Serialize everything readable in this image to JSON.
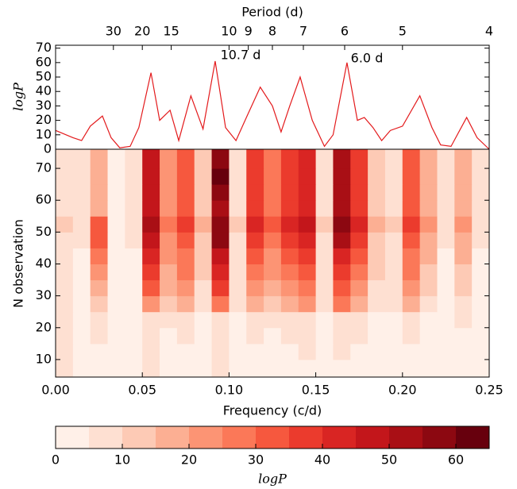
{
  "chart_data": [
    {
      "type": "line",
      "title": "Period (d)",
      "ylabel": "logP",
      "color": "#e31a1c",
      "x": [
        0,
        0.01,
        0.015,
        0.02,
        0.027,
        0.032,
        0.037,
        0.043,
        0.048,
        0.055,
        0.06,
        0.066,
        0.071,
        0.078,
        0.085,
        0.092,
        0.098,
        0.104,
        0.11,
        0.118,
        0.125,
        0.13,
        0.135,
        0.141,
        0.148,
        0.155,
        0.16,
        0.168,
        0.174,
        0.178,
        0.183,
        0.188,
        0.193,
        0.2,
        0.21,
        0.217,
        0.222,
        0.228,
        0.237,
        0.243,
        0.25
      ],
      "values": [
        13,
        8,
        6,
        16,
        23,
        8,
        1,
        2,
        15,
        53,
        20,
        27,
        6,
        37,
        14,
        61,
        15,
        6,
        22,
        43,
        30,
        12,
        30,
        50,
        20,
        2,
        10,
        60,
        20,
        22,
        15,
        6,
        13,
        16,
        37,
        15,
        3,
        2,
        22,
        8,
        0
      ],
      "xlim": [
        0,
        0.25
      ],
      "ylim": [
        0,
        72
      ],
      "yticks": [
        0,
        10,
        20,
        30,
        40,
        50,
        60,
        70
      ],
      "xticks": [
        {
          "value": 0.03333,
          "label": "30"
        },
        {
          "value": 0.05,
          "label": "20"
        },
        {
          "value": 0.06667,
          "label": "15"
        },
        {
          "value": 0.1,
          "label": "10"
        },
        {
          "value": 0.11111,
          "label": "9"
        },
        {
          "value": 0.125,
          "label": "8"
        },
        {
          "value": 0.14286,
          "label": "7"
        },
        {
          "value": 0.16667,
          "label": "6"
        },
        {
          "value": 0.2,
          "label": "5"
        },
        {
          "value": 0.25,
          "label": "4"
        }
      ],
      "annotations": [
        "10.7 d",
        "6.0 d"
      ]
    },
    {
      "type": "contour",
      "xlabel": "Frequency (c/d)",
      "ylabel": "N observation",
      "xlim": [
        0,
        0.25
      ],
      "ylim": [
        4.5,
        76
      ],
      "xticks": [
        {
          "value": 0,
          "label": "0.00"
        },
        {
          "value": 0.05,
          "label": "0.05"
        },
        {
          "value": 0.1,
          "label": "0.10"
        },
        {
          "value": 0.15,
          "label": "0.15"
        },
        {
          "value": 0.2,
          "label": "0.20"
        },
        {
          "value": 0.25,
          "label": "0.25"
        }
      ],
      "yticks": [
        10,
        20,
        30,
        40,
        50,
        60,
        70
      ],
      "x_edges": [
        0,
        0.01,
        0.02,
        0.03,
        0.04,
        0.05,
        0.06,
        0.07,
        0.08,
        0.09,
        0.1,
        0.11,
        0.12,
        0.13,
        0.14,
        0.15,
        0.16,
        0.17,
        0.18,
        0.19,
        0.2,
        0.21,
        0.22,
        0.23,
        0.24,
        0.25
      ],
      "y_edges": [
        4.5,
        10,
        15,
        20,
        25,
        30,
        35,
        40,
        45,
        50,
        55,
        60,
        65,
        70,
        76
      ],
      "z": [
        [
          6,
          4,
          4,
          3,
          3,
          5,
          4,
          4,
          3,
          5,
          3,
          4,
          4,
          4,
          4,
          3,
          4,
          4,
          3,
          3,
          4,
          3,
          3,
          3,
          3
        ],
        [
          5,
          4,
          4,
          3,
          3,
          5,
          4,
          4,
          4,
          5,
          3,
          4,
          4,
          4,
          5,
          3,
          5,
          4,
          3,
          3,
          4,
          3,
          3,
          3,
          3
        ],
        [
          5,
          4,
          5,
          3,
          3,
          6,
          4,
          5,
          4,
          6,
          3,
          5,
          4,
          5,
          5,
          3,
          6,
          5,
          4,
          3,
          5,
          4,
          3,
          4,
          3
        ],
        [
          5,
          4,
          6,
          3,
          4,
          8,
          5,
          7,
          4,
          9,
          4,
          7,
          5,
          7,
          8,
          4,
          9,
          7,
          4,
          4,
          6,
          4,
          3,
          5,
          3
        ],
        [
          5,
          3,
          14,
          2,
          3,
          22,
          11,
          16,
          7,
          26,
          5,
          18,
          13,
          18,
          20,
          5,
          25,
          18,
          7,
          5,
          16,
          9,
          3,
          9,
          3
        ],
        [
          6,
          3,
          18,
          2,
          3,
          30,
          15,
          21,
          9,
          35,
          6,
          24,
          18,
          24,
          27,
          6,
          33,
          24,
          9,
          6,
          21,
          12,
          3,
          12,
          3
        ],
        [
          7,
          4,
          22,
          2,
          4,
          35,
          18,
          25,
          11,
          41,
          7,
          28,
          21,
          28,
          32,
          7,
          39,
          28,
          11,
          7,
          25,
          14,
          4,
          14,
          4
        ],
        [
          8,
          4,
          26,
          2,
          4,
          40,
          20,
          28,
          12,
          46,
          8,
          32,
          24,
          32,
          36,
          8,
          44,
          32,
          12,
          8,
          28,
          16,
          4,
          16,
          4
        ],
        [
          9,
          5,
          30,
          3,
          5,
          48,
          24,
          33,
          14,
          55,
          9,
          38,
          28,
          38,
          43,
          9,
          52,
          38,
          14,
          9,
          33,
          19,
          5,
          19,
          5
        ],
        [
          10,
          5,
          32,
          3,
          5,
          52,
          25,
          35,
          15,
          58,
          10,
          40,
          30,
          40,
          45,
          10,
          57,
          40,
          15,
          10,
          35,
          20,
          5,
          20,
          5
        ],
        [
          9,
          5,
          18,
          3,
          5,
          45,
          23,
          32,
          14,
          52,
          9,
          36,
          27,
          36,
          41,
          9,
          50,
          36,
          14,
          9,
          32,
          18,
          5,
          18,
          5
        ],
        [
          9,
          5,
          18,
          3,
          5,
          45,
          23,
          32,
          14,
          55,
          9,
          36,
          27,
          36,
          41,
          9,
          50,
          36,
          14,
          9,
          32,
          18,
          5,
          18,
          5
        ],
        [
          9,
          5,
          19,
          3,
          5,
          48,
          24,
          33,
          14,
          62,
          9,
          38,
          28,
          38,
          43,
          9,
          52,
          38,
          14,
          9,
          33,
          19,
          5,
          19,
          5
        ],
        [
          9,
          5,
          19,
          3,
          5,
          48,
          24,
          33,
          14,
          58,
          9,
          38,
          28,
          38,
          43,
          9,
          52,
          38,
          14,
          9,
          33,
          19,
          5,
          19,
          5
        ]
      ],
      "colorbar": {
        "label": "logP",
        "levels": [
          0,
          5,
          10,
          15,
          20,
          25,
          30,
          35,
          40,
          45,
          50,
          55,
          60,
          65
        ],
        "colors": [
          "#fff0e8",
          "#fee0d2",
          "#fdcab5",
          "#fcaf93",
          "#fc9474",
          "#fb7858",
          "#f6583e",
          "#eb3b2d",
          "#d92523",
          "#c3161b",
          "#a90f15",
          "#8c0811",
          "#67000d"
        ],
        "ticks": [
          0,
          10,
          20,
          30,
          40,
          50,
          60
        ]
      }
    }
  ]
}
